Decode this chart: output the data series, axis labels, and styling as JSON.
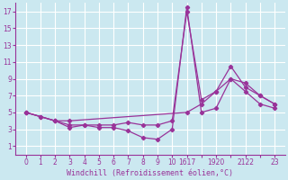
{
  "background_color": "#cbe8f0",
  "line_color": "#993399",
  "grid_color": "#ffffff",
  "xlabel": "Windchill (Refroidissement éolien,°C)",
  "xlabel_color": "#993399",
  "tick_color": "#993399",
  "spine_color": "#993399",
  "xlim": [
    -0.5,
    23.5
  ],
  "ylim": [
    0,
    18
  ],
  "yticks": [
    1,
    3,
    5,
    7,
    9,
    11,
    13,
    15,
    17
  ],
  "xtick_vals": [
    0,
    1,
    2,
    3,
    4,
    5,
    6,
    7,
    8,
    9,
    10,
    16,
    17,
    19,
    20,
    21,
    22,
    23
  ],
  "xtick_labels": [
    "0",
    "1",
    "2",
    "3",
    "4",
    "5",
    "6",
    "7",
    "8",
    "9",
    "10",
    "1617",
    "",
    "1920",
    "",
    "2122",
    "",
    "23"
  ],
  "line1": {
    "x": [
      0,
      1,
      2,
      3,
      4,
      5,
      6,
      7,
      8,
      9,
      10,
      16,
      17,
      19,
      20,
      21,
      22,
      23
    ],
    "y": [
      5,
      4.5,
      4.0,
      3.2,
      3.5,
      3.2,
      3.2,
      2.8,
      2.0,
      1.8,
      3.0,
      17.5,
      5.0,
      5.5,
      9.0,
      7.5,
      6.0,
      5.5
    ]
  },
  "line2": {
    "x": [
      0,
      1,
      2,
      3,
      4,
      5,
      6,
      7,
      8,
      9,
      10,
      16,
      17,
      19,
      20,
      21,
      22,
      23
    ],
    "y": [
      5,
      4.5,
      4.0,
      3.5,
      3.5,
      3.5,
      3.5,
      3.8,
      3.5,
      3.5,
      4.0,
      17.0,
      6.5,
      7.5,
      10.5,
      8.0,
      7.0,
      6.0
    ]
  },
  "line3": {
    "x": [
      0,
      2,
      3,
      16,
      17,
      19,
      20,
      21,
      22,
      23
    ],
    "y": [
      5,
      4.0,
      4.0,
      5.0,
      6.0,
      7.5,
      9.0,
      8.5,
      7.0,
      6.0
    ]
  }
}
